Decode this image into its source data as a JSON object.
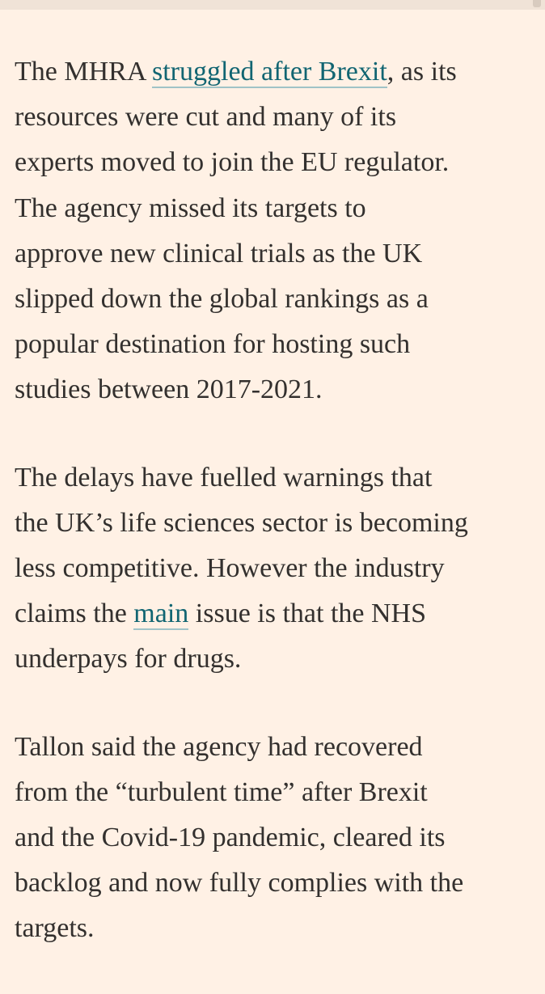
{
  "article": {
    "paragraphs": [
      {
        "lines": [
          {
            "before": "The MHRA ",
            "link": "struggled after Brexit",
            "after": ", as its"
          },
          {
            "text": "resources were cut and many of its"
          },
          {
            "text": "experts moved to join the EU regulator."
          },
          {
            "text": "The agency missed its targets to"
          },
          {
            "text": "approve new clinical trials as the UK"
          },
          {
            "text": "slipped down the global rankings as a"
          },
          {
            "text": "popular destination for hosting such"
          },
          {
            "text": "studies between 2017-2021."
          }
        ]
      },
      {
        "lines": [
          {
            "text": "The delays have fuelled warnings that"
          },
          {
            "text": "the UK’s life sciences sector is becoming"
          },
          {
            "text": "less competitive. However the industry"
          },
          {
            "before": "claims the ",
            "link": "main",
            "after": " issue is that the NHS"
          },
          {
            "text": "underpays for drugs."
          }
        ]
      },
      {
        "lines": [
          {
            "text": "Tallon said the agency had recovered"
          },
          {
            "text": "from the “turbulent time” after Brexit"
          },
          {
            "text": "and the Covid-19 pandemic, cleared its"
          },
          {
            "text": "backlog and now fully complies with the"
          },
          {
            "text": "targets."
          }
        ]
      }
    ]
  }
}
